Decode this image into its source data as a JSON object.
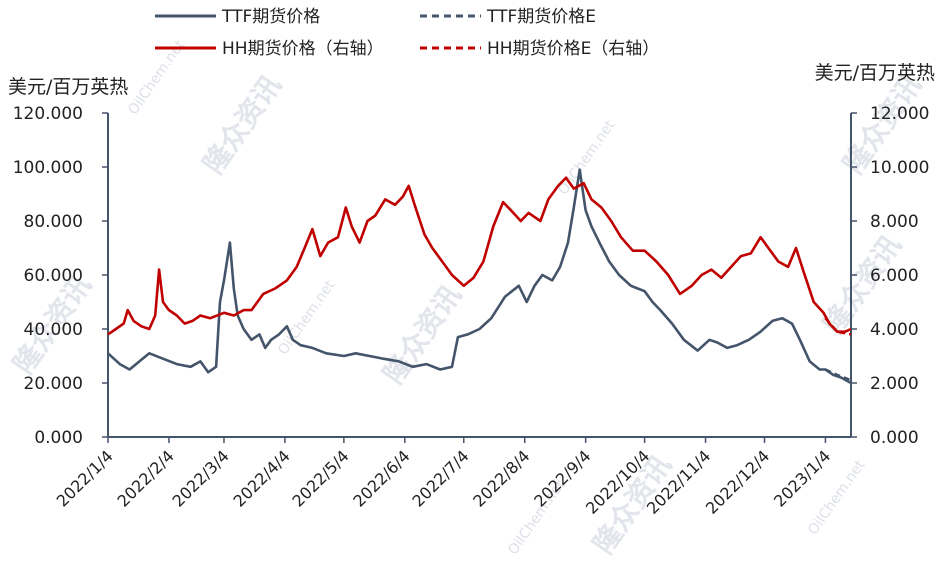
{
  "chart_data": {
    "type": "line",
    "colors": {
      "ttf": "#44546a",
      "hh": "#c00000",
      "axis": "#44546a"
    },
    "legend": [
      {
        "label": "TTF期货价格",
        "style": "solid",
        "color": "#44546a",
        "series": "ttf"
      },
      {
        "label": "TTF期货价格E",
        "style": "dashed",
        "color": "#44546a",
        "series": "ttf_e"
      },
      {
        "label": "HH期货价格（右轴）",
        "style": "solid",
        "color": "#c00000",
        "series": "hh"
      },
      {
        "label": "HH期货价格E（右轴）",
        "style": "dashed",
        "color": "#c00000",
        "series": "hh_e"
      }
    ],
    "y_left": {
      "unit": "美元/百万英热",
      "lim": [
        0,
        120
      ],
      "ticks": [
        "120.000",
        "100.000",
        "80.000",
        "60.000",
        "40.000",
        "20.000",
        "0.000"
      ]
    },
    "y_right": {
      "unit": "美元/百万英热",
      "lim": [
        0,
        12
      ],
      "ticks": [
        "12.000",
        "10.000",
        "8.000",
        "6.000",
        "4.000",
        "2.000",
        "0.000"
      ]
    },
    "x_ticks": [
      "2022/1/4",
      "2022/2/4",
      "2022/3/4",
      "2022/4/4",
      "2022/5/4",
      "2022/6/4",
      "2022/7/4",
      "2022/8/4",
      "2022/9/4",
      "2022/10/4",
      "2022/11/4",
      "2022/12/4",
      "2023/1/4"
    ],
    "x_range": [
      "2022-01-04",
      "2023-01-17"
    ],
    "series": {
      "ttf": [
        [
          "2022-01-04",
          31
        ],
        [
          "2022-01-10",
          27
        ],
        [
          "2022-01-15",
          25
        ],
        [
          "2022-01-20",
          28
        ],
        [
          "2022-01-25",
          31
        ],
        [
          "2022-02-01",
          29
        ],
        [
          "2022-02-08",
          27
        ],
        [
          "2022-02-15",
          26
        ],
        [
          "2022-02-20",
          28
        ],
        [
          "2022-02-24",
          24
        ],
        [
          "2022-02-28",
          26
        ],
        [
          "2022-03-02",
          50
        ],
        [
          "2022-03-04",
          58
        ],
        [
          "2022-03-07",
          72
        ],
        [
          "2022-03-09",
          55
        ],
        [
          "2022-03-11",
          45
        ],
        [
          "2022-03-14",
          40
        ],
        [
          "2022-03-18",
          36
        ],
        [
          "2022-03-22",
          38
        ],
        [
          "2022-03-25",
          33
        ],
        [
          "2022-03-28",
          36
        ],
        [
          "2022-04-01",
          38
        ],
        [
          "2022-04-05",
          41
        ],
        [
          "2022-04-08",
          36
        ],
        [
          "2022-04-12",
          34
        ],
        [
          "2022-04-18",
          33
        ],
        [
          "2022-04-25",
          31
        ],
        [
          "2022-05-04",
          30
        ],
        [
          "2022-05-10",
          31
        ],
        [
          "2022-05-17",
          30
        ],
        [
          "2022-05-24",
          29
        ],
        [
          "2022-06-01",
          28
        ],
        [
          "2022-06-08",
          26
        ],
        [
          "2022-06-15",
          27
        ],
        [
          "2022-06-22",
          25
        ],
        [
          "2022-06-28",
          26
        ],
        [
          "2022-07-01",
          37
        ],
        [
          "2022-07-06",
          38
        ],
        [
          "2022-07-12",
          40
        ],
        [
          "2022-07-18",
          44
        ],
        [
          "2022-07-25",
          52
        ],
        [
          "2022-08-01",
          56
        ],
        [
          "2022-08-05",
          50
        ],
        [
          "2022-08-09",
          56
        ],
        [
          "2022-08-13",
          60
        ],
        [
          "2022-08-18",
          58
        ],
        [
          "2022-08-22",
          63
        ],
        [
          "2022-08-26",
          72
        ],
        [
          "2022-08-29",
          85
        ],
        [
          "2022-09-01",
          99
        ],
        [
          "2022-09-04",
          84
        ],
        [
          "2022-09-07",
          78
        ],
        [
          "2022-09-11",
          72
        ],
        [
          "2022-09-16",
          65
        ],
        [
          "2022-09-21",
          60
        ],
        [
          "2022-09-27",
          56
        ],
        [
          "2022-10-04",
          54
        ],
        [
          "2022-10-08",
          50
        ],
        [
          "2022-10-12",
          47
        ],
        [
          "2022-10-18",
          42
        ],
        [
          "2022-10-24",
          36
        ],
        [
          "2022-10-31",
          32
        ],
        [
          "2022-11-06",
          36
        ],
        [
          "2022-11-10",
          35
        ],
        [
          "2022-11-15",
          33
        ],
        [
          "2022-11-20",
          34
        ],
        [
          "2022-11-26",
          36
        ],
        [
          "2022-12-02",
          39
        ],
        [
          "2022-12-08",
          43
        ],
        [
          "2022-12-13",
          44
        ],
        [
          "2022-12-18",
          42
        ],
        [
          "2022-12-22",
          36
        ],
        [
          "2022-12-27",
          28
        ],
        [
          "2023-01-01",
          25
        ],
        [
          "2023-01-04",
          25
        ],
        [
          "2023-01-08",
          23
        ],
        [
          "2023-01-12",
          22
        ],
        [
          "2023-01-17",
          20
        ]
      ],
      "hh": [
        [
          "2022-01-04",
          3.8
        ],
        [
          "2022-01-08",
          4.0
        ],
        [
          "2022-01-12",
          4.2
        ],
        [
          "2022-01-14",
          4.7
        ],
        [
          "2022-01-17",
          4.3
        ],
        [
          "2022-01-21",
          4.1
        ],
        [
          "2022-01-25",
          4.0
        ],
        [
          "2022-01-28",
          4.5
        ],
        [
          "2022-01-30",
          6.2
        ],
        [
          "2022-02-01",
          5.0
        ],
        [
          "2022-02-04",
          4.7
        ],
        [
          "2022-02-08",
          4.5
        ],
        [
          "2022-02-12",
          4.2
        ],
        [
          "2022-02-16",
          4.3
        ],
        [
          "2022-02-20",
          4.5
        ],
        [
          "2022-02-25",
          4.4
        ],
        [
          "2022-03-04",
          4.6
        ],
        [
          "2022-03-09",
          4.5
        ],
        [
          "2022-03-14",
          4.7
        ],
        [
          "2022-03-18",
          4.7
        ],
        [
          "2022-03-24",
          5.3
        ],
        [
          "2022-03-30",
          5.5
        ],
        [
          "2022-04-05",
          5.8
        ],
        [
          "2022-04-10",
          6.3
        ],
        [
          "2022-04-14",
          7.0
        ],
        [
          "2022-04-18",
          7.7
        ],
        [
          "2022-04-22",
          6.7
        ],
        [
          "2022-04-26",
          7.2
        ],
        [
          "2022-05-01",
          7.4
        ],
        [
          "2022-05-05",
          8.5
        ],
        [
          "2022-05-08",
          7.8
        ],
        [
          "2022-05-12",
          7.2
        ],
        [
          "2022-05-16",
          8.0
        ],
        [
          "2022-05-20",
          8.2
        ],
        [
          "2022-05-25",
          8.8
        ],
        [
          "2022-05-30",
          8.6
        ],
        [
          "2022-06-03",
          8.9
        ],
        [
          "2022-06-06",
          9.3
        ],
        [
          "2022-06-09",
          8.6
        ],
        [
          "2022-06-14",
          7.5
        ],
        [
          "2022-06-18",
          7.0
        ],
        [
          "2022-06-23",
          6.5
        ],
        [
          "2022-06-28",
          6.0
        ],
        [
          "2022-07-04",
          5.6
        ],
        [
          "2022-07-09",
          5.9
        ],
        [
          "2022-07-14",
          6.5
        ],
        [
          "2022-07-19",
          7.8
        ],
        [
          "2022-07-24",
          8.7
        ],
        [
          "2022-07-28",
          8.4
        ],
        [
          "2022-08-02",
          8.0
        ],
        [
          "2022-08-06",
          8.3
        ],
        [
          "2022-08-12",
          8.0
        ],
        [
          "2022-08-16",
          8.8
        ],
        [
          "2022-08-21",
          9.3
        ],
        [
          "2022-08-25",
          9.6
        ],
        [
          "2022-08-29",
          9.2
        ],
        [
          "2022-09-03",
          9.4
        ],
        [
          "2022-09-07",
          8.8
        ],
        [
          "2022-09-12",
          8.5
        ],
        [
          "2022-09-17",
          8.0
        ],
        [
          "2022-09-22",
          7.4
        ],
        [
          "2022-09-28",
          6.9
        ],
        [
          "2022-10-04",
          6.9
        ],
        [
          "2022-10-10",
          6.5
        ],
        [
          "2022-10-16",
          6.0
        ],
        [
          "2022-10-22",
          5.3
        ],
        [
          "2022-10-28",
          5.6
        ],
        [
          "2022-11-02",
          6.0
        ],
        [
          "2022-11-07",
          6.2
        ],
        [
          "2022-11-12",
          5.9
        ],
        [
          "2022-11-17",
          6.3
        ],
        [
          "2022-11-22",
          6.7
        ],
        [
          "2022-11-27",
          6.8
        ],
        [
          "2022-12-02",
          7.4
        ],
        [
          "2022-12-06",
          7.0
        ],
        [
          "2022-12-11",
          6.5
        ],
        [
          "2022-12-16",
          6.3
        ],
        [
          "2022-12-20",
          7.0
        ],
        [
          "2022-12-24",
          6.1
        ],
        [
          "2022-12-29",
          5.0
        ],
        [
          "2023-01-03",
          4.6
        ],
        [
          "2023-01-06",
          4.2
        ],
        [
          "2023-01-10",
          3.9
        ],
        [
          "2023-01-14",
          3.9
        ],
        [
          "2023-01-17",
          4.0
        ]
      ],
      "ttf_e": [
        [
          "2023-01-04",
          25
        ],
        [
          "2023-01-10",
          23
        ],
        [
          "2023-01-17",
          21
        ]
      ],
      "hh_e": [
        [
          "2023-01-04",
          4.4
        ],
        [
          "2023-01-10",
          3.9
        ],
        [
          "2023-01-17",
          3.8
        ]
      ]
    }
  },
  "watermark": {
    "cn": "隆众资讯",
    "en": "OilChem.net"
  }
}
